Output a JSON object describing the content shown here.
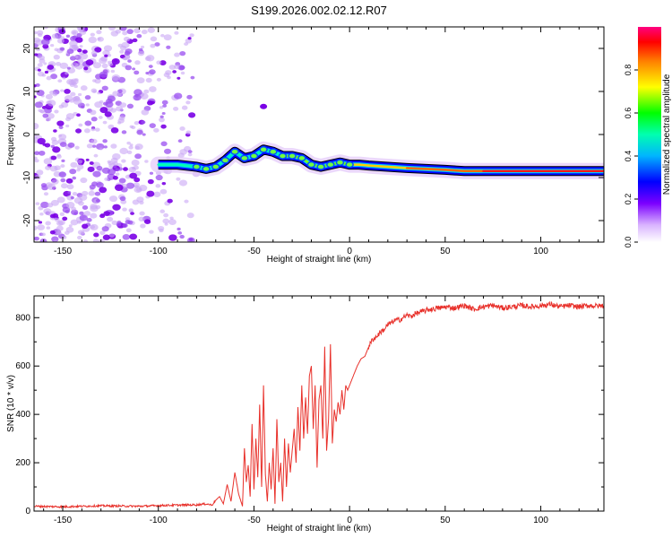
{
  "title": "S199.2026.002.02.12.R07",
  "colors": {
    "line": "#e8302a",
    "axis": "#000000",
    "trace_outline": "#000000",
    "scatter": "#7a2be0"
  },
  "chart_data": [
    {
      "type": "heatmap",
      "name": "spectrogram",
      "xlabel": "Height of straight line (km)",
      "ylabel": "Frequency (Hz)",
      "xlim": [
        -165,
        133
      ],
      "ylim": [
        -25,
        25
      ],
      "xticks": [
        -150,
        -100,
        -50,
        0,
        50,
        100
      ],
      "yticks": [
        -20,
        -10,
        0,
        10,
        20
      ],
      "colorbar": {
        "label": "Normalized spectral amplitude",
        "range": [
          0,
          1
        ],
        "ticks": [
          0.0,
          0.2,
          0.4,
          0.6,
          0.8
        ]
      },
      "trace": {
        "x": [
          -100,
          -90,
          -80,
          -75,
          -70,
          -65,
          -60,
          -55,
          -50,
          -45,
          -40,
          -35,
          -30,
          -25,
          -20,
          -15,
          -10,
          -5,
          0,
          5,
          10,
          20,
          30,
          40,
          50,
          60,
          70,
          80,
          90,
          100,
          110,
          120,
          133
        ],
        "y": [
          -7.0,
          -7.0,
          -7.5,
          -8.0,
          -7.5,
          -6.0,
          -4.0,
          -5.5,
          -5.0,
          -3.5,
          -4.0,
          -5.0,
          -5.0,
          -5.5,
          -7.0,
          -7.5,
          -7.0,
          -6.5,
          -7.0,
          -7.0,
          -7.2,
          -7.5,
          -7.8,
          -8.0,
          -8.2,
          -8.5,
          -8.5,
          -8.5,
          -8.5,
          -8.5,
          -8.5,
          -8.5,
          -8.5
        ]
      },
      "noise_region": {
        "x_range": [
          -165,
          -80
        ],
        "y_range": [
          -25,
          25
        ]
      },
      "isolated_blob": {
        "x": -45,
        "y": 6.5
      }
    },
    {
      "type": "line",
      "name": "snr",
      "xlabel": "Height of straight line (km)",
      "ylabel": "SNR (10 * v/v)",
      "xlim": [
        -165,
        133
      ],
      "ylim": [
        0,
        890
      ],
      "xticks": [
        -150,
        -100,
        -50,
        0,
        50,
        100
      ],
      "yticks": [
        0,
        200,
        400,
        600,
        800
      ],
      "series": [
        {
          "name": "SNR",
          "x": [
            -165,
            -150,
            -130,
            -110,
            -95,
            -80,
            -75,
            -72,
            -70,
            -68,
            -66,
            -64,
            -62,
            -60,
            -58,
            -56,
            -55,
            -54,
            -53,
            -52,
            -51,
            -50,
            -49,
            -48,
            -47,
            -46,
            -45,
            -44,
            -43,
            -42,
            -41,
            -40,
            -39,
            -38,
            -37,
            -36,
            -35,
            -34,
            -33,
            -32,
            -31,
            -30,
            -29,
            -28,
            -27,
            -26,
            -25,
            -24,
            -23,
            -22,
            -21,
            -20,
            -19,
            -18,
            -17,
            -16,
            -15,
            -14,
            -13,
            -12,
            -11,
            -10,
            -9,
            -8,
            -7,
            -6,
            -5,
            -4,
            -3,
            -2,
            -1,
            0,
            2,
            4,
            6,
            8,
            10,
            12,
            14,
            16,
            18,
            20,
            22,
            24,
            26,
            28,
            30,
            32,
            34,
            36,
            38,
            40,
            42,
            44,
            46,
            48,
            50,
            55,
            60,
            65,
            70,
            75,
            80,
            85,
            90,
            95,
            100,
            105,
            110,
            115,
            120,
            125,
            130,
            133
          ],
          "y": [
            20,
            18,
            22,
            20,
            24,
            26,
            30,
            25,
            45,
            60,
            30,
            110,
            40,
            160,
            70,
            20,
            260,
            120,
            190,
            60,
            360,
            90,
            300,
            140,
            440,
            100,
            520,
            150,
            40,
            200,
            90,
            260,
            30,
            380,
            120,
            200,
            40,
            300,
            100,
            280,
            160,
            250,
            340,
            200,
            430,
            250,
            520,
            300,
            470,
            320,
            560,
            600,
            340,
            520,
            180,
            460,
            520,
            300,
            680,
            250,
            380,
            690,
            280,
            420,
            370,
            450,
            400,
            500,
            420,
            520,
            500,
            520,
            560,
            600,
            630,
            640,
            680,
            710,
            720,
            740,
            750,
            770,
            780,
            790,
            790,
            800,
            810,
            805,
            815,
            820,
            825,
            830,
            835,
            835,
            840,
            840,
            845,
            840,
            850,
            835,
            845,
            850,
            840,
            845,
            850,
            845,
            850,
            855,
            845,
            850,
            845,
            850,
            848,
            850
          ]
        }
      ]
    }
  ]
}
